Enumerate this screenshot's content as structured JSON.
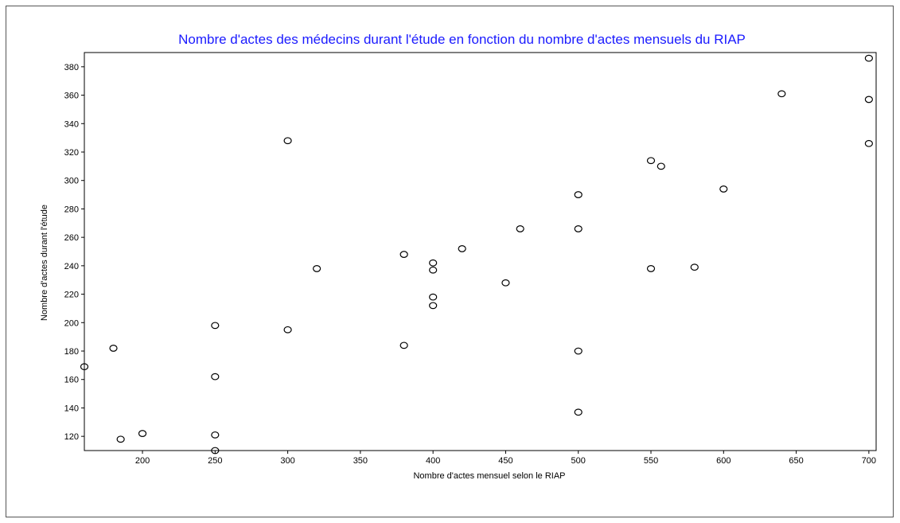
{
  "chart_data": {
    "type": "scatter",
    "title": "Nombre d'actes des médecins durant l'étude en fonction du nombre d'actes mensuels du RIAP",
    "xlabel": "Nombre d'actes mensuel selon le RIAP",
    "ylabel": "Nombre d'actes durant l'étude",
    "xlim": [
      160,
      705
    ],
    "ylim": [
      110,
      390
    ],
    "xticks": [
      200,
      250,
      300,
      350,
      400,
      450,
      500,
      550,
      600,
      650,
      700
    ],
    "yticks": [
      120,
      140,
      160,
      180,
      200,
      220,
      240,
      260,
      280,
      300,
      320,
      340,
      360,
      380
    ],
    "grid": false,
    "marker": "open-circle",
    "title_color": "#1a1aff",
    "points": [
      {
        "x": 160,
        "y": 169
      },
      {
        "x": 180,
        "y": 182
      },
      {
        "x": 185,
        "y": 118
      },
      {
        "x": 200,
        "y": 122
      },
      {
        "x": 250,
        "y": 198
      },
      {
        "x": 250,
        "y": 162
      },
      {
        "x": 250,
        "y": 121
      },
      {
        "x": 250,
        "y": 110
      },
      {
        "x": 300,
        "y": 328
      },
      {
        "x": 300,
        "y": 195
      },
      {
        "x": 320,
        "y": 238
      },
      {
        "x": 380,
        "y": 248
      },
      {
        "x": 380,
        "y": 184
      },
      {
        "x": 400,
        "y": 242
      },
      {
        "x": 400,
        "y": 237
      },
      {
        "x": 400,
        "y": 218
      },
      {
        "x": 400,
        "y": 212
      },
      {
        "x": 420,
        "y": 252
      },
      {
        "x": 450,
        "y": 228
      },
      {
        "x": 460,
        "y": 266
      },
      {
        "x": 500,
        "y": 290
      },
      {
        "x": 500,
        "y": 266
      },
      {
        "x": 500,
        "y": 180
      },
      {
        "x": 500,
        "y": 137
      },
      {
        "x": 550,
        "y": 314
      },
      {
        "x": 550,
        "y": 238
      },
      {
        "x": 557,
        "y": 310
      },
      {
        "x": 580,
        "y": 239
      },
      {
        "x": 600,
        "y": 294
      },
      {
        "x": 640,
        "y": 361
      },
      {
        "x": 700,
        "y": 386
      },
      {
        "x": 700,
        "y": 357
      },
      {
        "x": 700,
        "y": 326
      }
    ]
  }
}
